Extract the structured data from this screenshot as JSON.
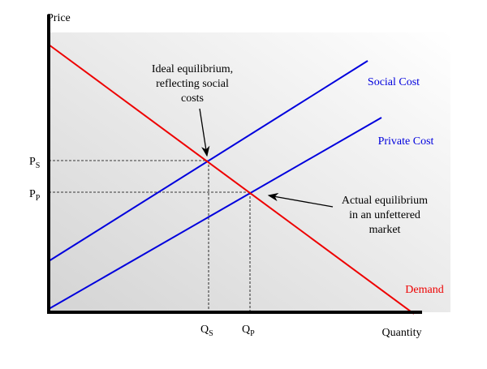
{
  "axes": {
    "y_label": "Price",
    "x_label": "Quantity"
  },
  "curves": {
    "social_cost": "Social Cost",
    "private_cost": "Private Cost",
    "demand": "Demand"
  },
  "annotations": {
    "ideal": [
      "Ideal equilibrium,",
      "reflecting social",
      "costs"
    ],
    "actual": [
      "Actual equilibrium",
      "in an unfettered",
      "market"
    ]
  },
  "ticks": {
    "p_s": {
      "main": "P",
      "sub": "S"
    },
    "p_p": {
      "main": "P",
      "sub": "P"
    },
    "q_s": {
      "main": "Q",
      "sub": "S"
    },
    "q_p": {
      "main": "Q",
      "sub": "P"
    }
  }
}
